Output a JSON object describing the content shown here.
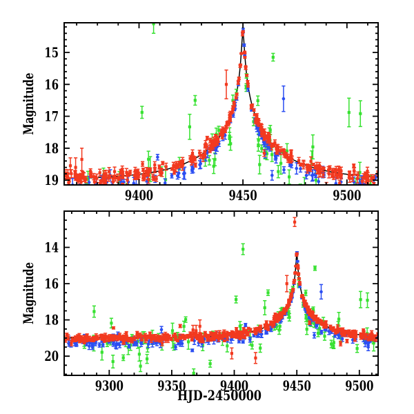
{
  "figure": {
    "background": "#ffffff",
    "description": "Two-panel microlensing light curve, magnitude vs HJD-2450000"
  },
  "chart_data": {
    "type": "scatter",
    "title": "",
    "xlabel": "HJD-2450000",
    "ylabel": "Magnitude",
    "grid": false,
    "legend": null,
    "panels": [
      {
        "id": "top",
        "ylabel": "Magnitude",
        "xlabel": "",
        "xlim": [
          9364,
          9515
        ],
        "ylim": [
          19.15,
          14.07
        ],
        "y_axis_inverted": true,
        "xticks": [
          9400,
          9450,
          9500
        ],
        "yticks": [
          15,
          16,
          17,
          18,
          19
        ],
        "x_minor_step": 10,
        "y_minor_step": 0.2
      },
      {
        "id": "bottom",
        "ylabel": "Magnitude",
        "xlabel": "HJD-2450000",
        "xlim": [
          9264,
          9515
        ],
        "ylim": [
          21.06,
          12.0
        ],
        "y_axis_inverted": true,
        "xticks": [
          9300,
          9350,
          9400,
          9450,
          9500
        ],
        "yticks": [
          14,
          16,
          18,
          20
        ],
        "x_minor_step": 10,
        "y_minor_step": 0.5
      }
    ],
    "model_curve": {
      "name": "microlensing-model",
      "color": "#000000",
      "t0": 9450,
      "tE": 38,
      "u0": 0.0138,
      "baseline_mag": 19.0,
      "peak_mag": 14.35,
      "anchor_points": [
        [
          9264,
          19.0
        ],
        [
          9300,
          18.99
        ],
        [
          9350,
          18.96
        ],
        [
          9400,
          18.8
        ],
        [
          9420,
          18.52
        ],
        [
          9430,
          18.2
        ],
        [
          9440,
          17.5
        ],
        [
          9445,
          16.85
        ],
        [
          9448,
          15.9
        ],
        [
          9450,
          14.35
        ],
        [
          9452,
          15.9
        ],
        [
          9455,
          16.85
        ],
        [
          9460,
          17.5
        ],
        [
          9470,
          18.15
        ],
        [
          9490,
          18.67
        ],
        [
          9515,
          18.88
        ]
      ]
    },
    "series": [
      {
        "name": "green",
        "color": "#37e131",
        "marker": "square",
        "generator": {
          "n": 78,
          "t_range": [
            9268,
            9515
          ],
          "n_peak_extra": 8,
          "peak_range": [
            9435,
            9470
          ],
          "mag_offset": 0.3,
          "sigma": 0.5,
          "err_min": 0.15,
          "err_max": 0.45,
          "outlier_frac": 0.12,
          "seed": 5
        }
      },
      {
        "name": "blue",
        "color": "#2b4ef2",
        "marker": "circle",
        "generator": {
          "n": 150,
          "t_range": [
            9266,
            9515
          ],
          "n_peak_extra": 22,
          "peak_range": [
            9438,
            9468
          ],
          "mag_offset": 0.25,
          "sigma": 0.11,
          "err_min": 0.06,
          "err_max": 0.22,
          "outlier_frac": 0.09,
          "seed": 13
        }
      },
      {
        "name": "red",
        "color": "#f2391f",
        "marker": "square",
        "generator": {
          "n": 430,
          "t_range": [
            9264,
            9515
          ],
          "n_peak_extra": 55,
          "peak_range": [
            9434,
            9472
          ],
          "mag_offset": 0.0,
          "sigma": 0.1,
          "err_min": 0.04,
          "err_max": 0.15,
          "outlier_frac": 0.06,
          "seed": 7
        }
      }
    ],
    "outlier_points": [
      [
        "red",
        9372.5,
        18.35,
        0.35
      ],
      [
        "red",
        9367.0,
        18.55,
        0.25
      ],
      [
        "red",
        9369.5,
        18.6,
        0.3
      ],
      [
        "red",
        9442.0,
        16.0,
        0.45
      ],
      [
        "red",
        9448.3,
        12.6,
        0.25
      ],
      [
        "red",
        9449.8,
        14.42,
        0.06
      ],
      [
        "red",
        9398.0,
        19.85,
        0.3
      ],
      [
        "red",
        9417.0,
        20.1,
        0.3
      ],
      [
        "blue",
        9469.5,
        16.45,
        0.4
      ],
      [
        "blue",
        9450.1,
        14.3,
        0.06
      ],
      [
        "blue",
        9464.0,
        18.85,
        0.15
      ],
      [
        "green",
        9407.0,
        14.1,
        0.3
      ],
      [
        "green",
        9427.0,
        16.5,
        0.15
      ],
      [
        "green",
        9464.5,
        15.15,
        0.12
      ],
      [
        "green",
        9451.6,
        16.1,
        0.12
      ],
      [
        "green",
        9501.0,
        16.88,
        0.45
      ],
      [
        "green",
        9443.5,
        17.7,
        0.2
      ],
      [
        "green",
        9457.5,
        17.75,
        0.2
      ],
      [
        "green",
        9436.5,
        18.35,
        0.2
      ],
      [
        "green",
        9303.0,
        20.3,
        0.35
      ],
      [
        "green",
        9325.0,
        20.55,
        0.3
      ]
    ]
  }
}
